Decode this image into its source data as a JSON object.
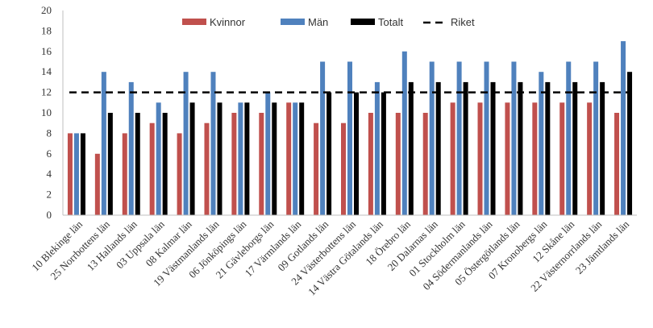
{
  "chart_data": {
    "type": "bar",
    "categories": [
      "10 Blekinge län",
      "25 Norrbottens län",
      "13 Hallands län",
      "03 Uppsala län",
      "08 Kalmar län",
      "19 Västmanlands län",
      "06 Jönköpings län",
      "21 Gävleborgs län",
      "17 Värmlands län",
      "09 Gotlands län",
      "24 Västerbottens län",
      "14 Västra Götalands län",
      "18 Örebro län",
      "20 Dalarnas län",
      "01 Stockholm län",
      "04 Södermanlands län",
      "05 Östergötlands län",
      "07 Kronobergs län",
      "12 Skåne län",
      "22 Västernorrlands län",
      "23 Jämtlands län"
    ],
    "series": [
      {
        "name": "Kvinnor",
        "color": "#C0504D",
        "values": [
          8,
          6,
          8,
          9,
          8,
          9,
          10,
          10,
          11,
          9,
          9,
          10,
          10,
          10,
          11,
          11,
          11,
          11,
          11,
          11,
          10
        ]
      },
      {
        "name": "Män",
        "color": "#4F81BD",
        "values": [
          8,
          14,
          13,
          11,
          14,
          14,
          11,
          12,
          11,
          15,
          15,
          13,
          16,
          15,
          15,
          15,
          15,
          14,
          15,
          15,
          17
        ]
      },
      {
        "name": "Totalt",
        "color": "#000000",
        "values": [
          8,
          10,
          10,
          10,
          11,
          11,
          11,
          11,
          11,
          12,
          12,
          12,
          13,
          13,
          13,
          13,
          13,
          13,
          13,
          13,
          14
        ]
      }
    ],
    "reference_line": {
      "name": "Riket",
      "value": 12,
      "style": "dashed",
      "color": "#000000"
    },
    "ylim": [
      0,
      20
    ],
    "yticks": [
      0,
      2,
      4,
      6,
      8,
      10,
      12,
      14,
      16,
      18,
      20
    ],
    "legend_position": "top-center",
    "grid": false
  }
}
